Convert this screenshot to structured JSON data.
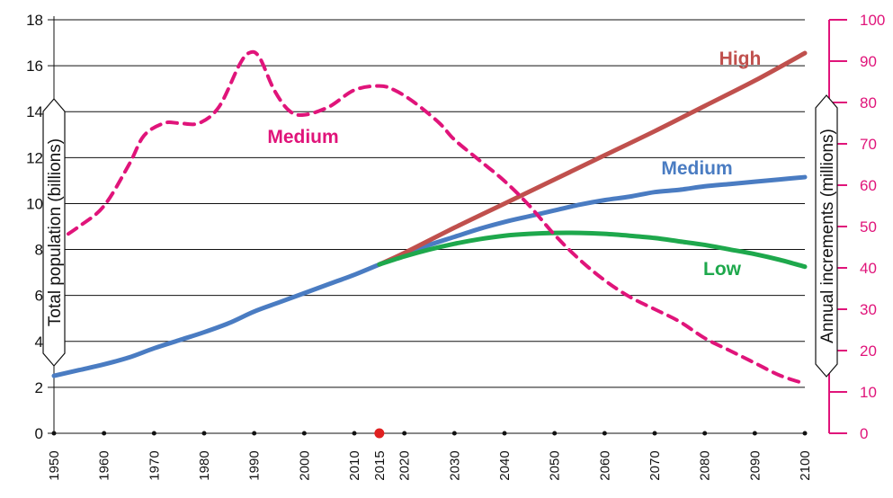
{
  "chart_data": {
    "type": "line",
    "title": "",
    "x": [
      1950,
      1960,
      1970,
      1980,
      1990,
      2000,
      2010,
      2015,
      2020,
      2030,
      2040,
      2050,
      2060,
      2070,
      2080,
      2090,
      2100
    ],
    "xlim": [
      1950,
      2100
    ],
    "left_axis": {
      "label": "Total population (billions)",
      "ylim": [
        0,
        18
      ],
      "ticks": [
        0,
        2,
        4,
        6,
        8,
        10,
        12,
        14,
        16,
        18
      ]
    },
    "right_axis": {
      "label": "Annual increments (millions)",
      "ylim": [
        0,
        100
      ],
      "ticks": [
        0,
        10,
        20,
        30,
        40,
        50,
        60,
        70,
        80,
        90,
        100
      ]
    },
    "marker": {
      "x": 2015,
      "y": 0,
      "color": "#e02020"
    },
    "series": [
      {
        "name": "Medium",
        "axis": "left",
        "style": "solid",
        "color": "#4a7cc2",
        "points": [
          [
            1950,
            2.5
          ],
          [
            1955,
            2.75
          ],
          [
            1960,
            3.0
          ],
          [
            1965,
            3.3
          ],
          [
            1970,
            3.7
          ],
          [
            1975,
            4.05
          ],
          [
            1980,
            4.4
          ],
          [
            1985,
            4.8
          ],
          [
            1990,
            5.3
          ],
          [
            1995,
            5.7
          ],
          [
            2000,
            6.1
          ],
          [
            2005,
            6.5
          ],
          [
            2010,
            6.9
          ],
          [
            2015,
            7.35
          ],
          [
            2020,
            7.8
          ],
          [
            2025,
            8.2
          ],
          [
            2030,
            8.55
          ],
          [
            2035,
            8.9
          ],
          [
            2040,
            9.2
          ],
          [
            2045,
            9.45
          ],
          [
            2050,
            9.7
          ],
          [
            2055,
            9.95
          ],
          [
            2060,
            10.15
          ],
          [
            2065,
            10.3
          ],
          [
            2070,
            10.5
          ],
          [
            2075,
            10.6
          ],
          [
            2080,
            10.75
          ],
          [
            2085,
            10.85
          ],
          [
            2090,
            10.95
          ],
          [
            2095,
            11.05
          ],
          [
            2100,
            11.15
          ]
        ]
      },
      {
        "name": "High",
        "axis": "left",
        "style": "solid",
        "color": "#c0504d",
        "points": [
          [
            2015,
            7.35
          ],
          [
            2020,
            7.85
          ],
          [
            2030,
            8.95
          ],
          [
            2040,
            10.0
          ],
          [
            2050,
            11.05
          ],
          [
            2060,
            12.1
          ],
          [
            2070,
            13.15
          ],
          [
            2080,
            14.25
          ],
          [
            2090,
            15.35
          ],
          [
            2100,
            16.55
          ]
        ]
      },
      {
        "name": "Low",
        "axis": "left",
        "style": "solid",
        "color": "#1ea84c",
        "points": [
          [
            2015,
            7.35
          ],
          [
            2020,
            7.7
          ],
          [
            2025,
            8.0
          ],
          [
            2030,
            8.25
          ],
          [
            2035,
            8.45
          ],
          [
            2040,
            8.6
          ],
          [
            2045,
            8.68
          ],
          [
            2050,
            8.72
          ],
          [
            2055,
            8.72
          ],
          [
            2060,
            8.68
          ],
          [
            2065,
            8.6
          ],
          [
            2070,
            8.5
          ],
          [
            2075,
            8.35
          ],
          [
            2080,
            8.2
          ],
          [
            2085,
            8.0
          ],
          [
            2090,
            7.8
          ],
          [
            2095,
            7.55
          ],
          [
            2100,
            7.25
          ]
        ]
      },
      {
        "name": "Medium",
        "axis": "right",
        "style": "dashed",
        "color": "#e0147a",
        "points": [
          [
            1950,
            46
          ],
          [
            1955,
            50
          ],
          [
            1960,
            55
          ],
          [
            1965,
            65
          ],
          [
            1968,
            72
          ],
          [
            1972,
            75
          ],
          [
            1975,
            75
          ],
          [
            1979,
            75
          ],
          [
            1983,
            79
          ],
          [
            1987,
            89
          ],
          [
            1989,
            92
          ],
          [
            1991,
            91
          ],
          [
            1994,
            83
          ],
          [
            1997,
            78
          ],
          [
            2000,
            77
          ],
          [
            2005,
            79
          ],
          [
            2010,
            83
          ],
          [
            2015,
            84
          ],
          [
            2018,
            83
          ],
          [
            2022,
            80
          ],
          [
            2027,
            75
          ],
          [
            2030,
            71
          ],
          [
            2035,
            66
          ],
          [
            2040,
            61
          ],
          [
            2045,
            55
          ],
          [
            2050,
            48
          ],
          [
            2055,
            42
          ],
          [
            2060,
            37
          ],
          [
            2065,
            33
          ],
          [
            2070,
            30
          ],
          [
            2075,
            27
          ],
          [
            2080,
            23
          ],
          [
            2085,
            20
          ],
          [
            2090,
            17
          ],
          [
            2095,
            14
          ],
          [
            2100,
            12
          ]
        ]
      }
    ]
  }
}
